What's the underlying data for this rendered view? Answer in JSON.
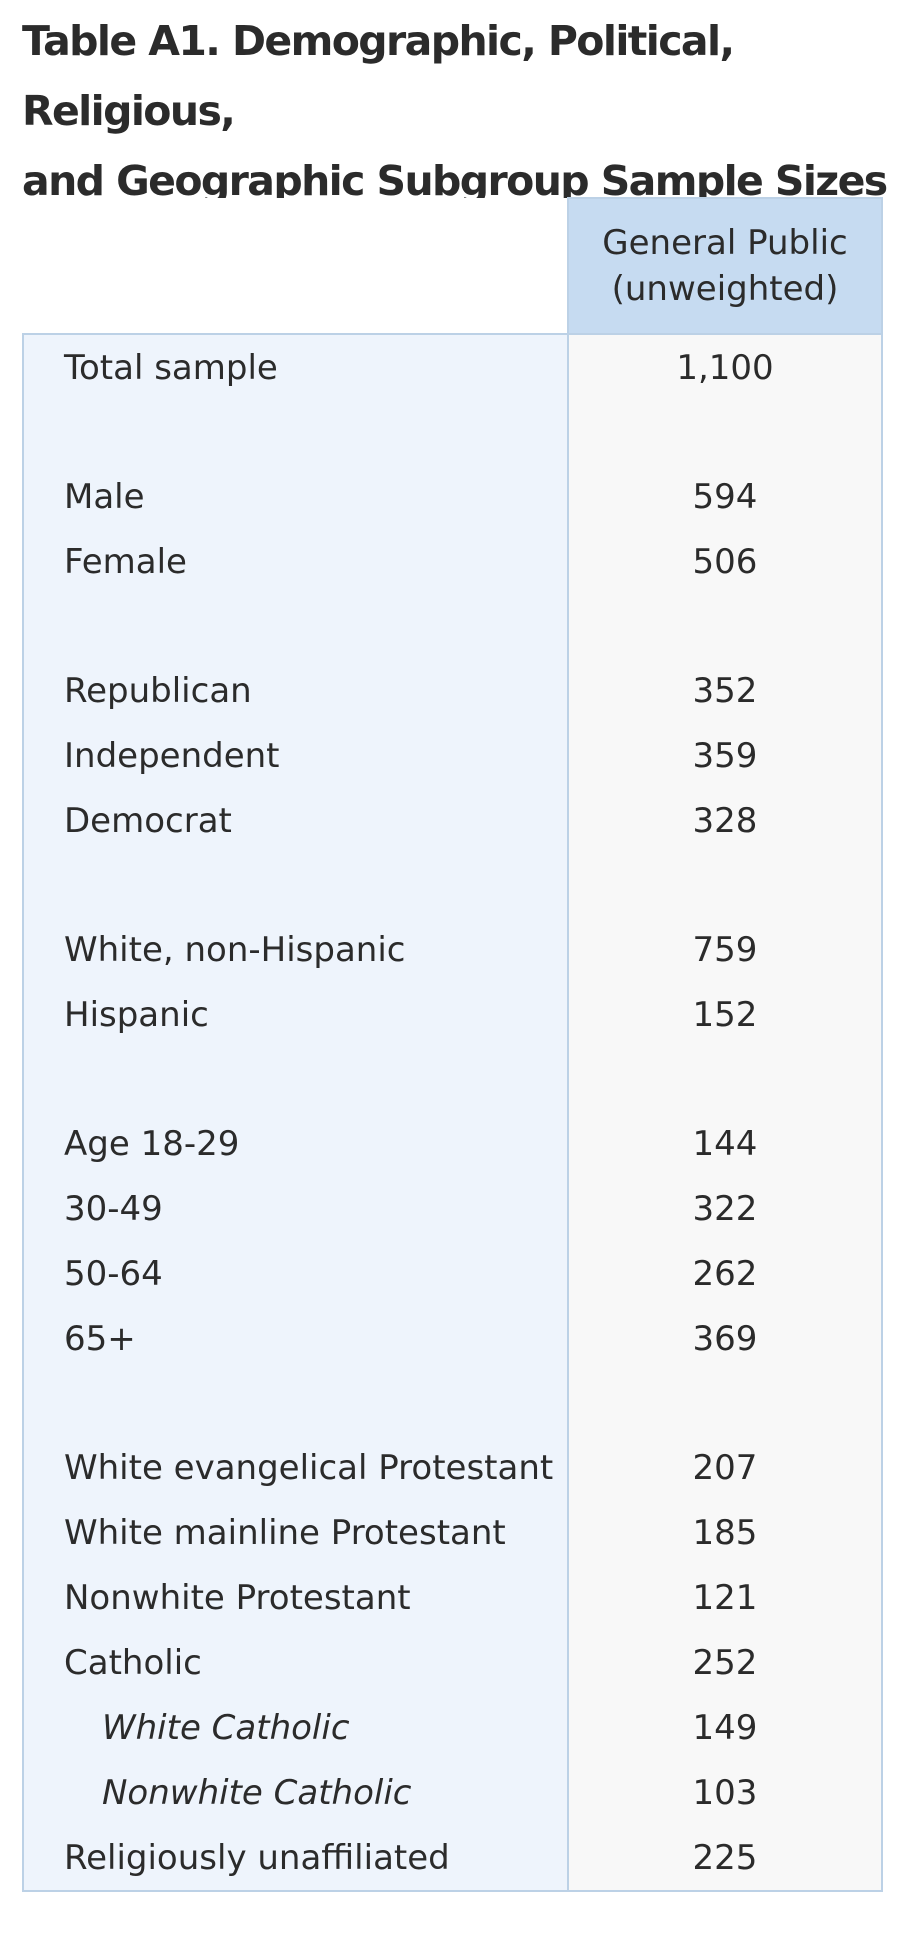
{
  "title": {
    "line1": "Table A1. Demographic, Political, Religious,",
    "line2": "and Geographic Subgroup Sample Sizes"
  },
  "table": {
    "column_header": {
      "line1": "General Public",
      "line2": "(unweighted)"
    },
    "rows": [
      {
        "label": "Total sample",
        "value": "1,100"
      },
      {
        "label": "Male",
        "value": "594"
      },
      {
        "label": "Female",
        "value": "506"
      },
      {
        "label": "Republican",
        "value": "352"
      },
      {
        "label": "Independent",
        "value": "359"
      },
      {
        "label": "Democrat",
        "value": "328"
      },
      {
        "label": "White, non-Hispanic",
        "value": "759"
      },
      {
        "label": "Hispanic",
        "value": "152"
      },
      {
        "label": "Age 18-29",
        "value": "144"
      },
      {
        "label": "30-49",
        "value": "322"
      },
      {
        "label": "50-64",
        "value": "262"
      },
      {
        "label": "65+",
        "value": "369"
      },
      {
        "label": "White evangelical Protestant",
        "value": "207"
      },
      {
        "label": "White mainline Protestant",
        "value": "185"
      },
      {
        "label": "Nonwhite Protestant",
        "value": "121"
      },
      {
        "label": "Catholic",
        "value": "252"
      },
      {
        "label": "White Catholic",
        "value": "149"
      },
      {
        "label": "Nonwhite Catholic",
        "value": "103"
      },
      {
        "label": "Religiously unaffiliated",
        "value": "225"
      }
    ]
  }
}
